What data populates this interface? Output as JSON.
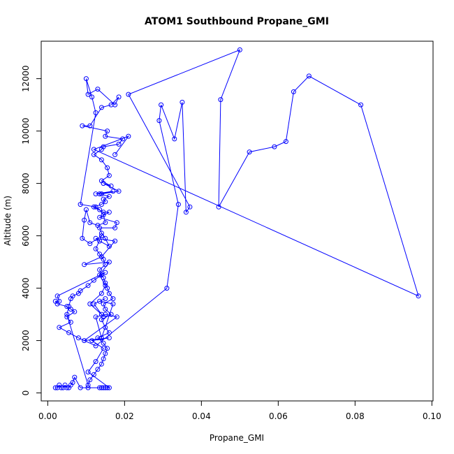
{
  "chart_data": {
    "type": "scatter",
    "title": "ATOM1 Southbound Propane_GMI",
    "xlabel": "Propane_GMI",
    "ylabel": "Altitude (m)",
    "xlim": [
      -0.0017,
      0.1003
    ],
    "ylim": [
      -305,
      13430
    ],
    "xticks": [
      0.0,
      0.02,
      0.04,
      0.06,
      0.08,
      0.1
    ],
    "xtick_labels": [
      "0.00",
      "0.02",
      "0.04",
      "0.06",
      "0.08",
      "0.10"
    ],
    "yticks": [
      0,
      2000,
      4000,
      6000,
      8000,
      10000,
      12000
    ],
    "ytick_labels": [
      "0",
      "2000",
      "4000",
      "6000",
      "8000",
      "10000",
      "12000"
    ],
    "grid": false,
    "legend": "none",
    "color": "#0000ff",
    "marker": "open-circle",
    "connect_points": true,
    "series": [
      {
        "name": "",
        "x": [
          0.002,
          0.0025,
          0.003,
          0.0035,
          0.004,
          0.0045,
          0.005,
          0.0055,
          0.006,
          0.0065,
          0.007,
          0.0085,
          0.0105,
          0.0135,
          0.014,
          0.0145,
          0.015,
          0.0155,
          0.016,
          0.0105,
          0.0125,
          0.0145,
          0.0115,
          0.016,
          0.0095,
          0.018,
          0.015,
          0.0125,
          0.014,
          0.017,
          0.0135,
          0.015,
          0.012,
          0.0145,
          0.014,
          0.011,
          0.014,
          0.015,
          0.0135,
          0.016,
          0.0095,
          0.014,
          0.0175,
          0.0125,
          0.0135,
          0.016,
          0.015,
          0.014,
          0.0135,
          0.0175,
          0.018,
          0.0135,
          0.016,
          0.0145,
          0.012,
          0.014,
          0.015,
          0.0145,
          0.016,
          0.0135,
          0.0125,
          0.017,
          0.014,
          0.0185,
          0.0145,
          0.0165,
          0.014,
          0.016,
          0.0155,
          0.014,
          0.012,
          0.014,
          0.0145,
          0.0185,
          0.0195,
          0.015,
          0.0155,
          0.009,
          0.011,
          0.014,
          0.0165,
          0.0185,
          0.0175,
          0.013,
          0.0105,
          0.01,
          0.0115,
          0.0125,
          0.0085,
          0.0125,
          0.0135,
          0.0145,
          0.015,
          0.013,
          0.011,
          0.01,
          0.0095,
          0.009,
          0.011,
          0.014,
          0.0125,
          0.0135,
          0.0145,
          0.015,
          0.0135,
          0.014,
          0.0145,
          0.015,
          0.0155,
          0.016,
          0.017,
          0.0145,
          0.015,
          0.0165,
          0.014,
          0.015,
          0.016,
          0.013,
          0.0145,
          0.0155,
          0.015,
          0.0145,
          0.014,
          0.013,
          0.012,
          0.011,
          0.0105,
          0.005,
          0.0055,
          0.006,
          0.0065,
          0.008,
          0.0085,
          0.0105,
          0.012,
          0.015,
          0.0025,
          0.003,
          0.002,
          0.0025,
          0.005,
          0.006,
          0.007,
          0.005,
          0.006,
          0.003,
          0.0055,
          0.008,
          0.0125,
          0.031,
          0.034,
          0.029,
          0.0295,
          0.033,
          0.035,
          0.036,
          0.037,
          0.021,
          0.05,
          0.045,
          0.0445,
          0.0525,
          0.059,
          0.062,
          0.064,
          0.068,
          0.0815,
          0.0965,
          0.012,
          0.021,
          0.0175
        ],
        "y": [
          200,
          200,
          300,
          200,
          200,
          300,
          200,
          200,
          300,
          400,
          600,
          200,
          200,
          200,
          200,
          200,
          200,
          200,
          200,
          800,
          1200,
          1700,
          2000,
          2100,
          2000,
          2900,
          3000,
          2900,
          2100,
          3400,
          3500,
          3600,
          3400,
          2900,
          3000,
          3400,
          3800,
          4100,
          4500,
          5000,
          4900,
          5200,
          5800,
          5900,
          5800,
          5600,
          5900,
          6100,
          6300,
          6300,
          6500,
          6700,
          6900,
          6900,
          7100,
          7200,
          7300,
          7400,
          7500,
          7600,
          7600,
          7700,
          7600,
          7700,
          8000,
          7900,
          8100,
          8300,
          8600,
          8900,
          9100,
          9300,
          9400,
          9500,
          9700,
          9800,
          10000,
          10200,
          10200,
          10900,
          11000,
          11300,
          11000,
          11600,
          11400,
          12000,
          11300,
          10700,
          7200,
          7100,
          7000,
          6800,
          6500,
          6400,
          6500,
          7000,
          6600,
          5900,
          5700,
          6000,
          5500,
          5300,
          5100,
          4900,
          4700,
          4500,
          4400,
          4200,
          4000,
          3800,
          3600,
          3400,
          3200,
          3000,
          2800,
          2500,
          2300,
          2100,
          1900,
          1700,
          1500,
          1300,
          1100,
          900,
          700,
          500,
          300,
          3000,
          3300,
          3600,
          3700,
          3800,
          3900,
          4100,
          4300,
          4600,
          3700,
          3500,
          3500,
          3400,
          3300,
          3200,
          3100,
          2900,
          2700,
          2500,
          2300,
          2100,
          1800,
          4000,
          7200,
          10400,
          11000,
          9700,
          11100,
          6900,
          7100,
          11400,
          13100,
          11200,
          7100,
          9200,
          9400,
          9600,
          11500,
          12100,
          11000,
          3700,
          9300,
          9800,
          9100
        ]
      }
    ]
  }
}
